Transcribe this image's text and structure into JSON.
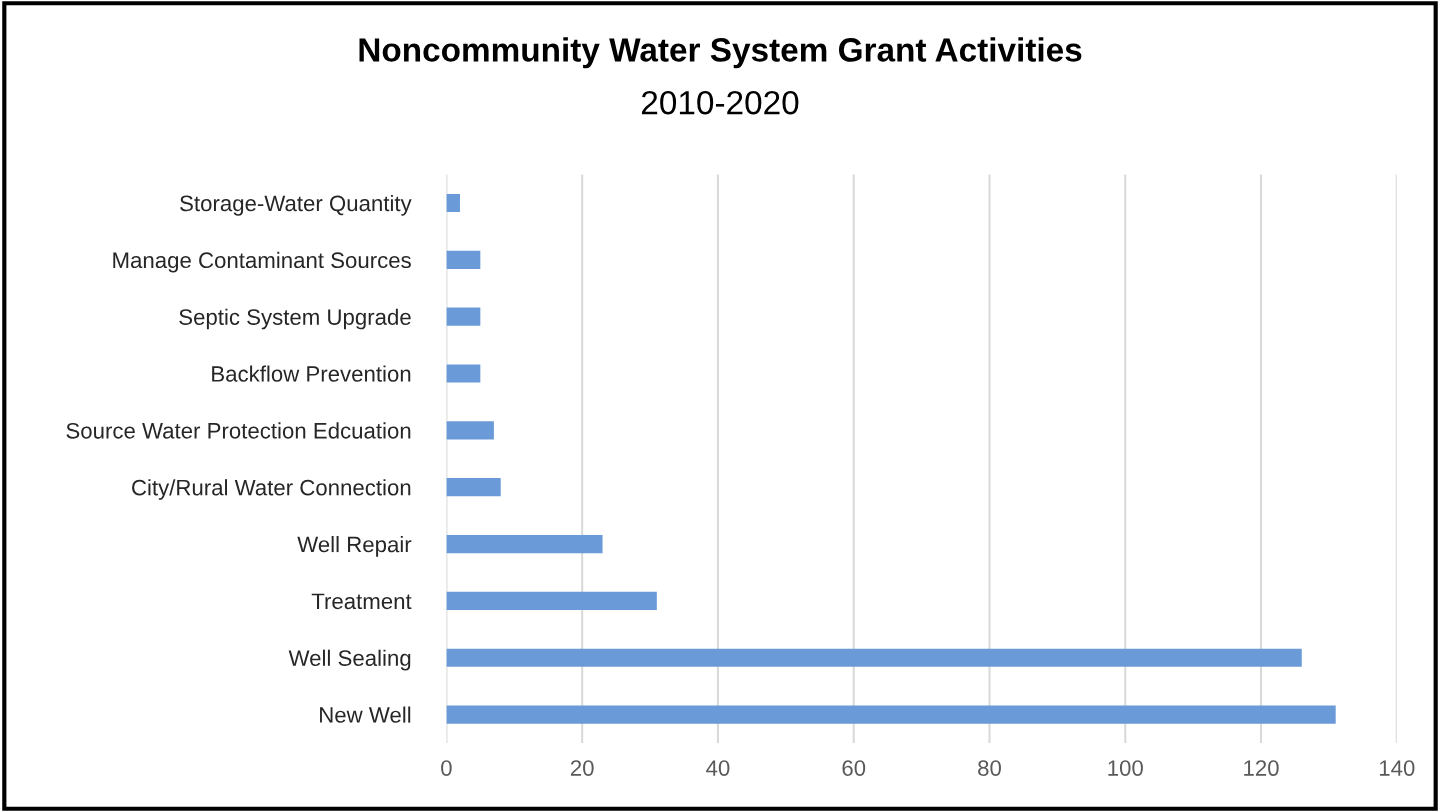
{
  "chart_data": {
    "type": "bar",
    "orientation": "horizontal",
    "title": "Noncommunity Water System Grant Activities",
    "subtitle": "2010-2020",
    "categories": [
      "Storage-Water Quantity",
      "Manage Contaminant Sources",
      "Septic System Upgrade",
      "Backflow Prevention",
      "Source Water Protection Edcuation",
      "City/Rural Water Connection",
      "Well Repair",
      "Treatment",
      "Well Sealing",
      "New Well"
    ],
    "values": [
      2,
      5,
      5,
      5,
      7,
      8,
      23,
      31,
      126,
      131
    ],
    "color": "#6a9bd8",
    "xlim": [
      0,
      140
    ],
    "xticks": [
      0,
      20,
      40,
      60,
      80,
      100,
      120,
      140
    ],
    "grid": "x"
  }
}
